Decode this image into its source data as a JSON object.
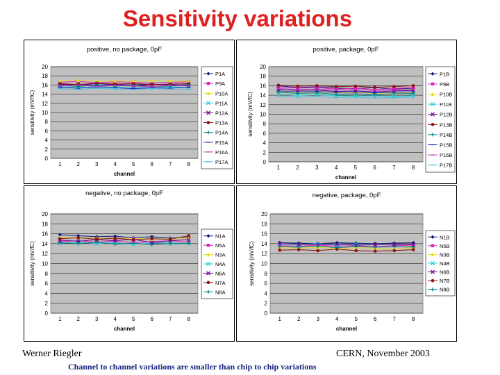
{
  "slide": {
    "title": "Sensitivity variations",
    "author": "Werner Riegler",
    "venue": "CERN, November 2003",
    "caption": "Channel to channel variations are smaller than chip to chip variations"
  },
  "chart_data": [
    {
      "type": "line",
      "title": "positive, no package, 0pF",
      "xlabel": "channel",
      "ylabel": "sensitivity (mV/fC)",
      "categories": [
        1,
        2,
        3,
        4,
        5,
        6,
        7,
        8
      ],
      "ylim": [
        0,
        20
      ],
      "yticks": [
        0,
        2,
        4,
        6,
        8,
        10,
        12,
        14,
        16,
        18,
        20
      ],
      "xlabel_visible": true,
      "series": [
        {
          "name": "P1A",
          "color": "#0a1a7a",
          "marker": "diamond",
          "values": [
            16.2,
            16.0,
            16.3,
            16.1,
            16.0,
            16.2,
            15.9,
            16.1
          ]
        },
        {
          "name": "P9A",
          "color": "#e020c0",
          "marker": "square",
          "values": [
            16.6,
            16.8,
            16.5,
            16.7,
            16.6,
            16.4,
            16.6,
            16.7
          ]
        },
        {
          "name": "P10A",
          "color": "#e8e020",
          "marker": "triangle",
          "values": [
            16.9,
            17.0,
            16.8,
            16.9,
            16.8,
            17.0,
            16.9,
            16.8
          ]
        },
        {
          "name": "P11A",
          "color": "#20d0e0",
          "marker": "x",
          "values": [
            15.6,
            15.4,
            15.7,
            15.5,
            15.6,
            15.3,
            15.6,
            15.5
          ]
        },
        {
          "name": "P12A",
          "color": "#700090",
          "marker": "x",
          "values": [
            16.0,
            16.2,
            15.9,
            16.1,
            15.8,
            16.0,
            16.1,
            15.9
          ]
        },
        {
          "name": "P13A",
          "color": "#901010",
          "marker": "circle",
          "values": [
            16.3,
            16.1,
            16.4,
            16.2,
            16.3,
            16.1,
            16.2,
            16.3
          ]
        },
        {
          "name": "P14A",
          "color": "#008080",
          "marker": "plus",
          "values": [
            15.9,
            15.7,
            16.0,
            15.8,
            15.9,
            15.6,
            15.8,
            15.9
          ]
        },
        {
          "name": "P15A",
          "color": "#1030c0",
          "marker": "dash",
          "values": [
            15.5,
            15.3,
            15.6,
            15.4,
            15.2,
            15.4,
            15.3,
            15.5
          ]
        },
        {
          "name": "P16A",
          "color": "#c040c0",
          "marker": "dash",
          "values": [
            15.8,
            16.0,
            15.7,
            15.9,
            15.8,
            15.6,
            15.9,
            15.8
          ]
        },
        {
          "name": "P17A",
          "color": "#40c0e0",
          "marker": "dash",
          "values": [
            15.2,
            15.0,
            15.3,
            15.1,
            15.0,
            15.2,
            15.1,
            15.0
          ]
        }
      ]
    },
    {
      "type": "line",
      "title": "positive, package, 0pF",
      "xlabel": "channel",
      "ylabel": "sensitivity (mV/fC)",
      "categories": [
        1,
        2,
        3,
        4,
        5,
        6,
        7,
        8
      ],
      "ylim": [
        0,
        20
      ],
      "yticks": [
        0,
        2,
        4,
        6,
        8,
        10,
        12,
        14,
        16,
        18,
        20
      ],
      "xlabel_visible": true,
      "series": [
        {
          "name": "P1B",
          "color": "#0a1a7a",
          "marker": "diamond",
          "values": [
            16.0,
            15.6,
            15.8,
            15.5,
            15.4,
            15.6,
            15.3,
            15.5
          ]
        },
        {
          "name": "P9B",
          "color": "#e020c0",
          "marker": "square",
          "values": [
            15.8,
            15.5,
            15.6,
            15.3,
            15.5,
            15.2,
            15.4,
            15.6
          ]
        },
        {
          "name": "P10B",
          "color": "#e8e020",
          "marker": "triangle",
          "values": [
            14.8,
            14.6,
            14.7,
            14.5,
            14.6,
            14.4,
            14.5,
            14.6
          ]
        },
        {
          "name": "P11B",
          "color": "#20d0e0",
          "marker": "x",
          "values": [
            14.2,
            14.0,
            14.1,
            13.9,
            13.8,
            13.9,
            13.7,
            13.9
          ]
        },
        {
          "name": "P12B",
          "color": "#700090",
          "marker": "x",
          "values": [
            15.2,
            15.0,
            15.1,
            14.8,
            14.9,
            14.7,
            14.9,
            15.0
          ]
        },
        {
          "name": "P13B",
          "color": "#901010",
          "marker": "circle",
          "values": [
            16.1,
            15.9,
            16.0,
            15.8,
            15.9,
            15.7,
            15.8,
            16.0
          ]
        },
        {
          "name": "P14B",
          "color": "#008080",
          "marker": "plus",
          "values": [
            14.6,
            14.4,
            14.5,
            14.2,
            14.3,
            14.1,
            14.3,
            14.4
          ]
        },
        {
          "name": "P15B",
          "color": "#1030c0",
          "marker": "dash",
          "values": [
            14.9,
            14.7,
            14.8,
            14.6,
            14.7,
            14.5,
            14.6,
            14.7
          ]
        },
        {
          "name": "P16B",
          "color": "#c040c0",
          "marker": "dash",
          "values": [
            15.4,
            15.2,
            15.3,
            15.1,
            15.2,
            15.0,
            15.1,
            15.2
          ]
        },
        {
          "name": "P17B",
          "color": "#40c0e0",
          "marker": "dash",
          "values": [
            13.8,
            13.6,
            13.7,
            13.5,
            13.6,
            13.4,
            13.5,
            13.6
          ]
        }
      ]
    },
    {
      "type": "line",
      "title": "negative, no package, 0pF",
      "xlabel": "channel",
      "ylabel": "sensitivity (mV/fC)",
      "categories": [
        1,
        2,
        3,
        4,
        5,
        6,
        7,
        8
      ],
      "ylim": [
        0,
        20
      ],
      "yticks": [
        0,
        2,
        4,
        6,
        8,
        10,
        12,
        14,
        16,
        18,
        20
      ],
      "xlabel_visible": true,
      "series": [
        {
          "name": "N1A",
          "color": "#0a1a7a",
          "marker": "diamond",
          "values": [
            15.8,
            15.6,
            15.4,
            15.5,
            15.2,
            15.4,
            15.1,
            15.3
          ]
        },
        {
          "name": "N5A",
          "color": "#e020c0",
          "marker": "square",
          "values": [
            14.4,
            14.6,
            14.3,
            14.5,
            14.2,
            14.4,
            14.6,
            14.3
          ]
        },
        {
          "name": "N3A",
          "color": "#e8e020",
          "marker": "triangle",
          "values": [
            15.3,
            15.1,
            15.2,
            15.0,
            15.1,
            14.9,
            15.0,
            15.2
          ]
        },
        {
          "name": "N4A",
          "color": "#20d0e0",
          "marker": "x",
          "values": [
            14.1,
            14.3,
            14.0,
            14.2,
            13.9,
            14.1,
            14.2,
            14.0
          ]
        },
        {
          "name": "N6A",
          "color": "#700090",
          "marker": "x",
          "values": [
            14.7,
            14.5,
            14.8,
            14.6,
            14.9,
            14.2,
            14.6,
            14.8
          ]
        },
        {
          "name": "N7A",
          "color": "#901010",
          "marker": "circle",
          "values": [
            15.0,
            15.2,
            14.9,
            15.1,
            14.8,
            15.0,
            14.9,
            15.6
          ]
        },
        {
          "name": "N8A",
          "color": "#008080",
          "marker": "plus",
          "values": [
            14.2,
            14.0,
            14.3,
            13.9,
            14.1,
            13.8,
            14.0,
            14.1
          ]
        }
      ]
    },
    {
      "type": "line",
      "title": "negative, package, 0pF",
      "xlabel": "channel",
      "ylabel": "sensitivity (mV/fC)",
      "categories": [
        1,
        2,
        3,
        4,
        5,
        6,
        7,
        8
      ],
      "ylim": [
        0,
        20
      ],
      "yticks": [
        0,
        2,
        4,
        6,
        8,
        10,
        12,
        14,
        16,
        18,
        20
      ],
      "xlabel_visible": true,
      "series": [
        {
          "name": "N1B",
          "color": "#0a1a7a",
          "marker": "diamond",
          "values": [
            14.2,
            14.1,
            14.0,
            14.2,
            14.1,
            14.0,
            14.1,
            14.2
          ]
        },
        {
          "name": "N5B",
          "color": "#e020c0",
          "marker": "square",
          "values": [
            13.6,
            13.5,
            13.7,
            13.5,
            13.6,
            13.4,
            13.6,
            13.7
          ]
        },
        {
          "name": "N3B",
          "color": "#e8e020",
          "marker": "triangle",
          "values": [
            13.2,
            13.1,
            13.3,
            13.0,
            13.2,
            13.1,
            13.0,
            13.2
          ]
        },
        {
          "name": "N4B",
          "color": "#20d0e0",
          "marker": "x",
          "values": [
            13.9,
            13.8,
            14.0,
            13.7,
            13.9,
            13.8,
            13.9,
            13.8
          ]
        },
        {
          "name": "N6B",
          "color": "#700090",
          "marker": "x",
          "values": [
            14.0,
            13.9,
            13.8,
            13.9,
            13.7,
            13.8,
            13.9,
            13.8
          ]
        },
        {
          "name": "N7B",
          "color": "#901010",
          "marker": "circle",
          "values": [
            12.7,
            12.8,
            12.6,
            12.9,
            12.6,
            12.5,
            12.6,
            12.8
          ]
        },
        {
          "name": "N8B",
          "color": "#008080",
          "marker": "plus",
          "values": [
            13.4,
            13.3,
            13.5,
            13.2,
            13.4,
            13.3,
            13.4,
            13.3
          ]
        }
      ]
    }
  ]
}
